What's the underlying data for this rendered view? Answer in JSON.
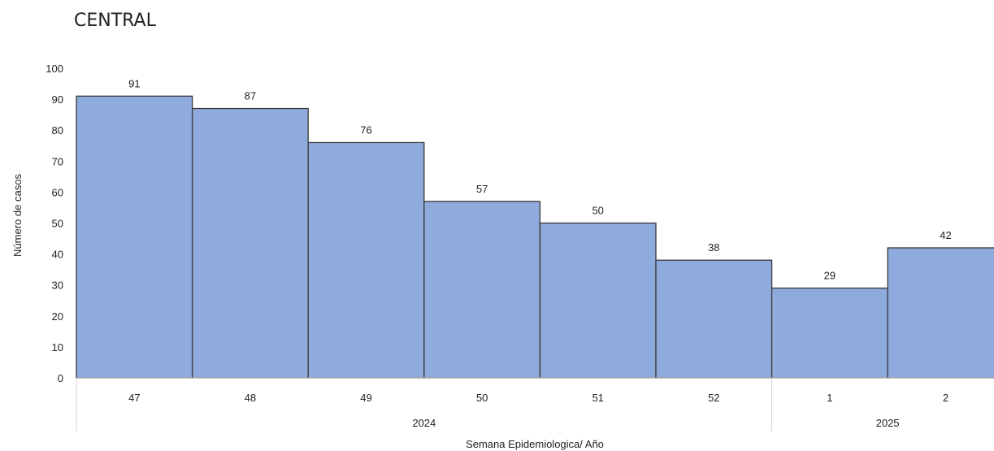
{
  "chart_data": {
    "type": "bar",
    "title": "CENTRAL",
    "xlabel": "Semana Epidemiologica/ Año",
    "ylabel": "Número de casos",
    "ylim": [
      0,
      100
    ],
    "yticks": [
      0,
      10,
      20,
      30,
      40,
      50,
      60,
      70,
      80,
      90,
      100
    ],
    "categories": [
      "47",
      "48",
      "49",
      "50",
      "51",
      "52",
      "1",
      "2"
    ],
    "groups": [
      {
        "label": "2024",
        "categories": [
          "47",
          "48",
          "49",
          "50",
          "51",
          "52"
        ]
      },
      {
        "label": "2025",
        "categories": [
          "1",
          "2"
        ]
      }
    ],
    "values": [
      91,
      87,
      76,
      57,
      50,
      38,
      29,
      42
    ],
    "data_labels": [
      "91",
      "87",
      "76",
      "57",
      "50",
      "38",
      "29",
      "42"
    ],
    "bar_color": "#8faadc",
    "bar_edge_color": "#3a3a3a",
    "grid": false,
    "legend": "none"
  }
}
